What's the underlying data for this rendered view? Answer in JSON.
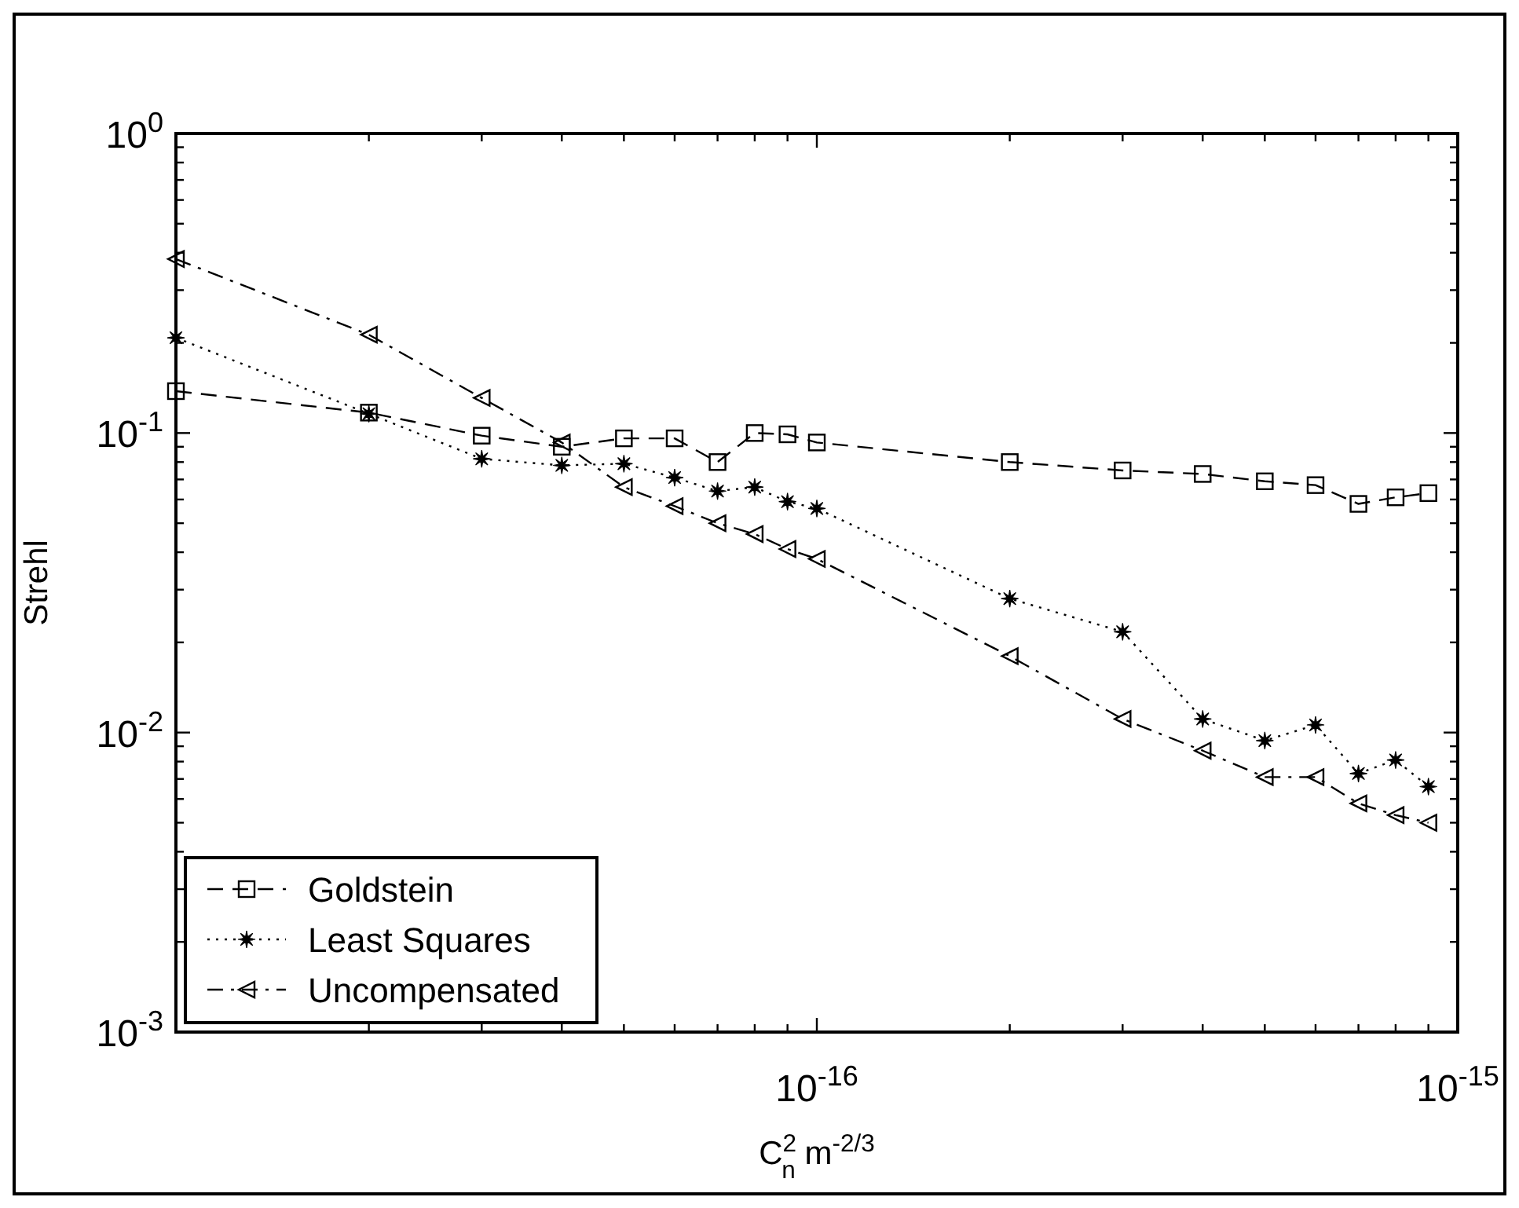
{
  "chart_data": {
    "type": "line",
    "xlabel": "C$^{2}$$_{n}$ m$^{-2/3}$",
    "ylabel": "Strehl",
    "log": "xy",
    "grid": false,
    "legend": "bottom left",
    "x": [
      1e-17,
      2e-17,
      3e-17,
      4e-17,
      5e-17,
      6e-17,
      7e-17,
      8e-17,
      9e-17,
      1e-16,
      2e-16,
      3e-16,
      4e-16,
      5e-16,
      6e-16,
      7e-16,
      8e-16,
      9e-16
    ],
    "xlim": [
      1e-17,
      1e-15
    ],
    "xticks": [
      {
        "value": 2e-17,
        "label": null
      },
      {
        "value": 3e-17,
        "label": null
      },
      {
        "value": 4e-17,
        "label": null
      },
      {
        "value": 5e-17,
        "label": null
      },
      {
        "value": 6e-17,
        "label": null
      },
      {
        "value": 7e-17,
        "label": null
      },
      {
        "value": 8e-17,
        "label": null
      },
      {
        "value": 9e-17,
        "label": null
      },
      {
        "value": 1e-16,
        "label": "10$^{-16}$"
      },
      {
        "value": 2e-16,
        "label": null
      },
      {
        "value": 3e-16,
        "label": null
      },
      {
        "value": 4e-16,
        "label": null
      },
      {
        "value": 5e-16,
        "label": null
      },
      {
        "value": 6e-16,
        "label": null
      },
      {
        "value": 7e-16,
        "label": null
      },
      {
        "value": 8e-16,
        "label": null
      },
      {
        "value": 9e-16,
        "label": null
      },
      {
        "value": 1e-15,
        "label": "10$^{-15}$"
      }
    ],
    "ylim": [
      0.001,
      1
    ],
    "yticks": [
      {
        "value": 0.001,
        "label": "10$^{-3}$"
      },
      {
        "value": 0.002,
        "label": null
      },
      {
        "value": 0.003,
        "label": null
      },
      {
        "value": 0.004,
        "label": null
      },
      {
        "value": 0.005,
        "label": null
      },
      {
        "value": 0.006,
        "label": null
      },
      {
        "value": 0.007,
        "label": null
      },
      {
        "value": 0.008,
        "label": null
      },
      {
        "value": 0.009,
        "label": null
      },
      {
        "value": 0.01,
        "label": "10$^{-2}$"
      },
      {
        "value": 0.02,
        "label": null
      },
      {
        "value": 0.03,
        "label": null
      },
      {
        "value": 0.04,
        "label": null
      },
      {
        "value": 0.05,
        "label": null
      },
      {
        "value": 0.06,
        "label": null
      },
      {
        "value": 0.07,
        "label": null
      },
      {
        "value": 0.08,
        "label": null
      },
      {
        "value": 0.09,
        "label": null
      },
      {
        "value": 0.1,
        "label": "10$^{-1}$"
      },
      {
        "value": 0.2,
        "label": null
      },
      {
        "value": 0.3,
        "label": null
      },
      {
        "value": 0.4,
        "label": null
      },
      {
        "value": 0.5,
        "label": null
      },
      {
        "value": 0.6,
        "label": null
      },
      {
        "value": 0.7,
        "label": null
      },
      {
        "value": 0.8,
        "label": null
      },
      {
        "value": 0.9,
        "label": null
      },
      {
        "value": 1,
        "label": "10$^{0}$"
      }
    ],
    "series": [
      {
        "name": "Goldstein",
        "color": "#000000",
        "marker": "square",
        "line_style": "dashed",
        "values": [
          0.138,
          0.117,
          0.098,
          0.09,
          0.096,
          0.096,
          0.08,
          0.1,
          0.099,
          0.093,
          0.08,
          0.075,
          0.073,
          0.069,
          0.067,
          0.058,
          0.061,
          0.063
        ]
      },
      {
        "name": "Least Squares",
        "color": "#000000",
        "marker": "star",
        "line_style": "dotted",
        "values": [
          0.208,
          0.116,
          0.082,
          0.078,
          0.079,
          0.071,
          0.064,
          0.066,
          0.059,
          0.056,
          0.028,
          0.0217,
          0.0111,
          0.0094,
          0.0106,
          0.0073,
          0.0081,
          0.0066
        ]
      },
      {
        "name": "Uncompensated",
        "color": "#000000",
        "marker": "triangle",
        "line_style": "dashdot",
        "values": [
          0.381,
          0.213,
          0.131,
          0.093,
          0.066,
          0.057,
          0.05,
          0.046,
          0.041,
          0.038,
          0.018,
          0.0111,
          0.0087,
          0.0071,
          0.0071,
          0.0058,
          0.0053,
          0.005
        ]
      }
    ]
  }
}
